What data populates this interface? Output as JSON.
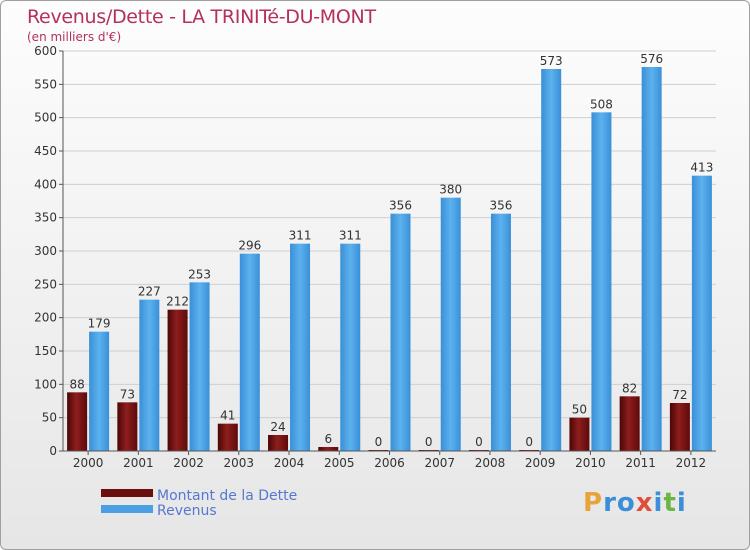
{
  "title": "Revenus/Dette - LA TRINITé-DU-MONT",
  "subtitle": "(en milliers d'€)",
  "logo": [
    "P",
    "r",
    "o",
    "x",
    "i",
    "t",
    "i"
  ],
  "colors": {
    "dette": "#7a1414",
    "revenus": "#4aa0e3",
    "title": "#b5305a"
  },
  "chart_data": {
    "type": "bar",
    "categories": [
      "2000",
      "2001",
      "2002",
      "2003",
      "2004",
      "2005",
      "2006",
      "2007",
      "2008",
      "2009",
      "2010",
      "2011",
      "2012"
    ],
    "series": [
      {
        "name": "Montant de la Dette",
        "values": [
          88,
          73,
          212,
          41,
          24,
          6,
          0,
          0,
          0,
          0,
          50,
          82,
          72
        ]
      },
      {
        "name": "Revenus",
        "values": [
          179,
          227,
          253,
          296,
          311,
          311,
          356,
          380,
          356,
          573,
          508,
          576,
          413
        ]
      }
    ],
    "ylim": [
      0,
      600
    ],
    "yticks": [
      0,
      50,
      100,
      150,
      200,
      250,
      300,
      350,
      400,
      450,
      500,
      550,
      600
    ],
    "grid": true,
    "legend": "bottom-left"
  }
}
